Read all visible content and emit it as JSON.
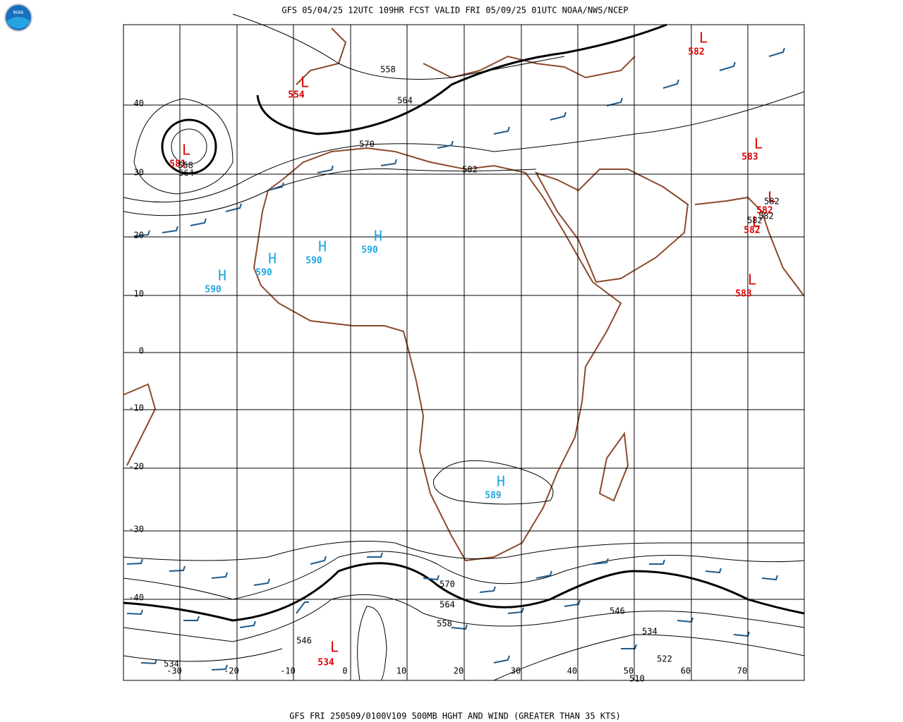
{
  "header": {
    "title": "GFS 05/04/25 12UTC 109HR FCST VALID FRI 05/09/25 01UTC NOAA/NWS/NCEP",
    "logo": "NOAA"
  },
  "footer": {
    "caption": "GFS FRI 250509/0100V109 500MB HGHT AND WIND (GREATER THAN 35 KTS)"
  },
  "map": {
    "lat_labels": [
      "40",
      "30",
      "20",
      "10",
      "0",
      "-10",
      "-20",
      "-30",
      "-40"
    ],
    "lon_labels": [
      "-30",
      "-20",
      "-10",
      "0",
      "10",
      "20",
      "30",
      "40",
      "50",
      "60",
      "70"
    ],
    "centers": [
      {
        "symbol": "L",
        "value": 554
      },
      {
        "symbol": "L",
        "value": 581
      },
      {
        "symbol": "H",
        "value": 590
      },
      {
        "symbol": "H",
        "value": 590
      },
      {
        "symbol": "H",
        "value": 590
      },
      {
        "symbol": "H",
        "value": 590
      },
      {
        "symbol": "H",
        "value": 589
      },
      {
        "symbol": "L",
        "value": 534
      },
      {
        "symbol": "L",
        "value": 582
      },
      {
        "symbol": "L",
        "value": 583
      },
      {
        "symbol": "L",
        "value": 582
      },
      {
        "symbol": "L",
        "value": 582
      },
      {
        "symbol": "L",
        "value": 583
      }
    ],
    "contour_labels": [
      558,
      564,
      570,
      582,
      558,
      564,
      582,
      582,
      582,
      570,
      564,
      558,
      546,
      546,
      534,
      522,
      510,
      534
    ]
  }
}
